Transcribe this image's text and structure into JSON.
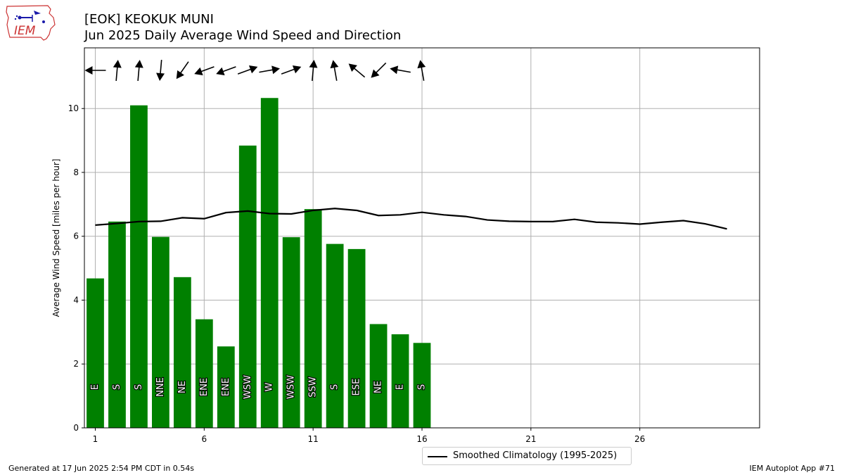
{
  "header": {
    "title_line1": "[EOK] KEOKUK MUNI",
    "title_line2": "Jun 2025 Daily Average Wind Speed and Direction",
    "logo_text": "IEM"
  },
  "footer": {
    "generated": "Generated at 17 Jun 2025 2:54 PM CDT in 0.54s",
    "app": "IEM Autoplot App #71"
  },
  "legend": {
    "climatology_label": "Smoothed Climatology (1995-2025)"
  },
  "colors": {
    "bar": "#008000",
    "line": "#000000",
    "grid": "#b0b0b0",
    "logo": "#cc3333",
    "logo_icons": "#1a1aaa"
  },
  "chart_data": {
    "type": "bar",
    "title": "[EOK] KEOKUK MUNI",
    "subtitle": "Jun 2025 Daily Average Wind Speed and Direction",
    "xlabel": "",
    "ylabel": "Average Wind Speed [miles per hour]",
    "xlim": [
      0.5,
      31.5
    ],
    "ylim": [
      0,
      11.9
    ],
    "xticks": [
      1,
      6,
      11,
      16,
      21,
      26
    ],
    "yticks": [
      0,
      2,
      4,
      6,
      8,
      10
    ],
    "grid": true,
    "legend_position": "bottom-center",
    "bars": {
      "days": [
        1,
        2,
        3,
        4,
        5,
        6,
        7,
        8,
        9,
        10,
        11,
        12,
        13,
        14,
        15,
        16
      ],
      "values": [
        4.68,
        6.46,
        10.1,
        5.98,
        4.72,
        3.4,
        2.55,
        8.84,
        10.33,
        5.97,
        6.85,
        5.76,
        5.6,
        3.25,
        2.93,
        2.66
      ],
      "directions": [
        "E",
        "S",
        "S",
        "NNE",
        "NE",
        "ENE",
        "ENE",
        "WSW",
        "W",
        "WSW",
        "SSW",
        "S",
        "ESE",
        "NE",
        "E",
        "S"
      ],
      "arrow_angles_deg": [
        180,
        85,
        85,
        265,
        235,
        200,
        200,
        20,
        10,
        20,
        85,
        100,
        140,
        225,
        170,
        100
      ]
    },
    "series": [
      {
        "name": "Smoothed Climatology (1995-2025)",
        "type": "line",
        "x": [
          1,
          2,
          3,
          4,
          5,
          6,
          7,
          8,
          9,
          10,
          11,
          12,
          13,
          14,
          15,
          16,
          17,
          18,
          19,
          20,
          21,
          22,
          23,
          24,
          25,
          26,
          27,
          28,
          29,
          30
        ],
        "values": [
          6.35,
          6.4,
          6.46,
          6.47,
          6.58,
          6.55,
          6.74,
          6.79,
          6.71,
          6.7,
          6.81,
          6.87,
          6.81,
          6.65,
          6.67,
          6.75,
          6.67,
          6.62,
          6.51,
          6.47,
          6.46,
          6.46,
          6.53,
          6.44,
          6.42,
          6.38,
          6.44,
          6.49,
          6.39,
          6.23
        ]
      }
    ]
  }
}
